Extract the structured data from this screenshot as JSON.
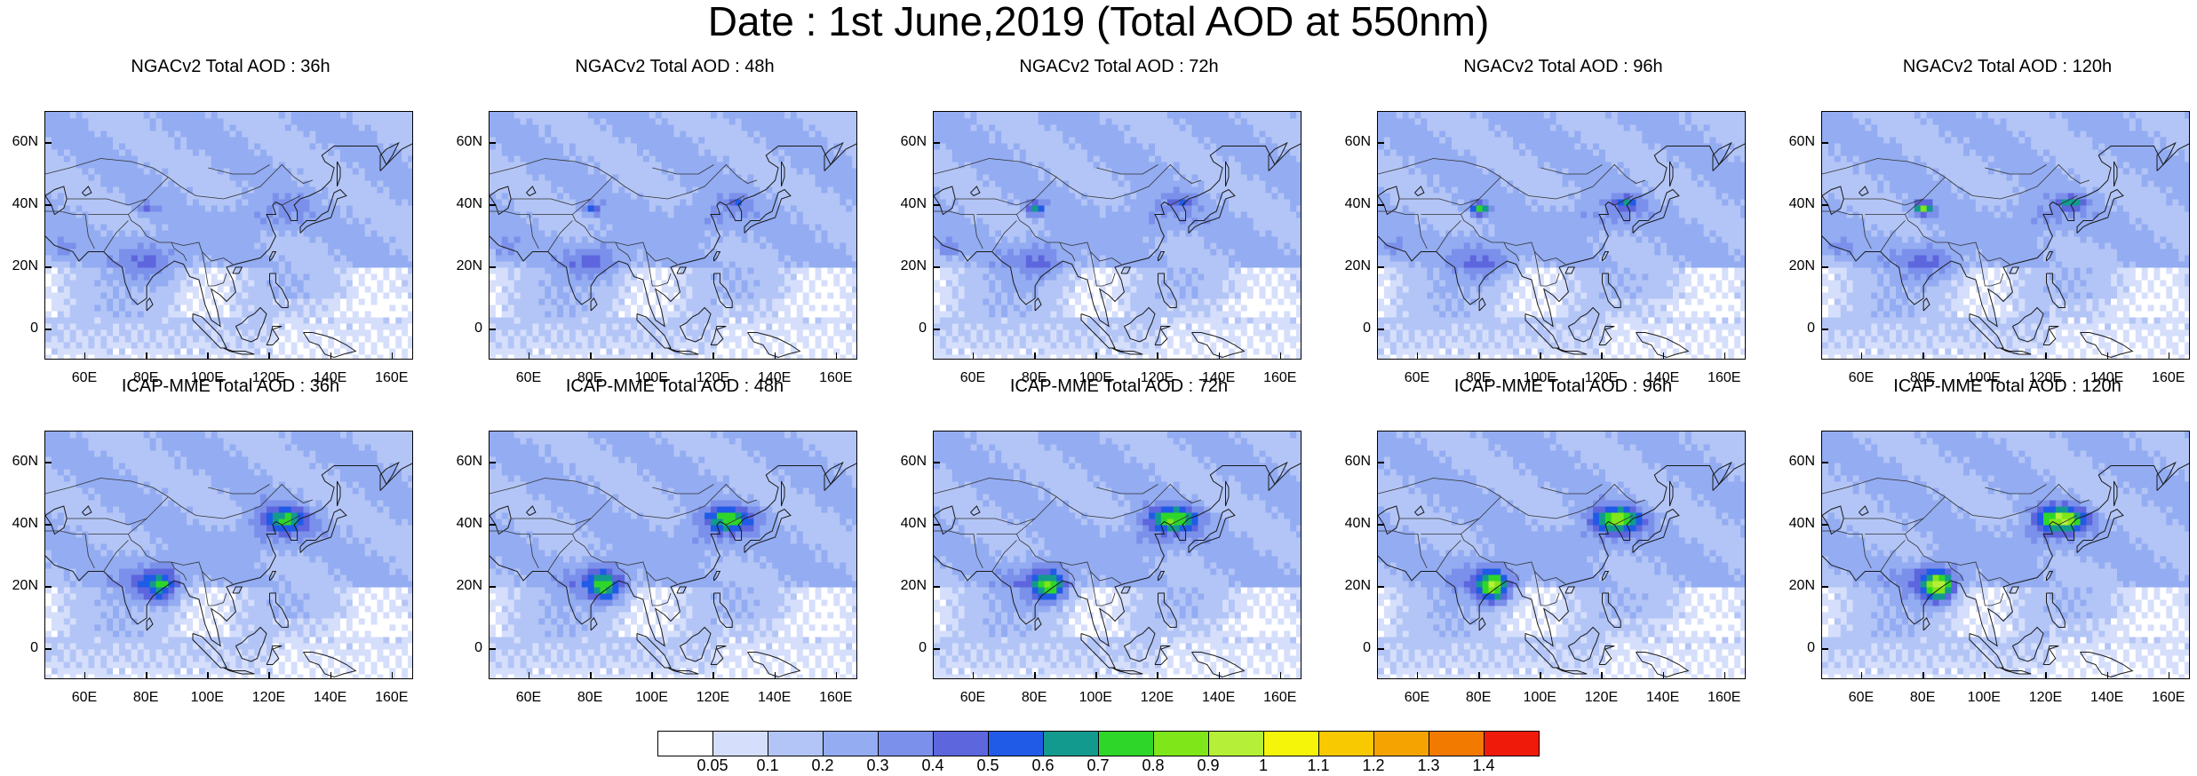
{
  "title": "Date : 1st June,2019 (Total AOD at 550nm)",
  "panel_rows": [
    {
      "model": "NGACv2",
      "panels": [
        {
          "title": "NGACv2 Total AOD : 36h",
          "hotspots": []
        },
        {
          "title": "NGACv2 Total AOD : 48h",
          "hotspots": []
        },
        {
          "title": "NGACv2 Total AOD : 72h",
          "hotspots": []
        },
        {
          "title": "NGACv2 Total AOD : 96h",
          "hotspots": []
        },
        {
          "title": "NGACv2 Total AOD : 120h",
          "hotspots": []
        }
      ]
    },
    {
      "model": "ICAP-MME",
      "panels": [
        {
          "title": "ICAP-MME Total AOD : 36h"
        },
        {
          "title": "ICAP-MME Total AOD : 48h"
        },
        {
          "title": "ICAP-MME Total AOD : 72h"
        },
        {
          "title": "ICAP-MME Total AOD : 96h"
        },
        {
          "title": "ICAP-MME Total AOD : 120h"
        }
      ]
    }
  ],
  "lat_ticks": [
    "60N",
    "40N",
    "20N",
    "0"
  ],
  "lon_ticks": [
    "60E",
    "80E",
    "100E",
    "120E",
    "140E",
    "160E"
  ],
  "colorbar": {
    "labels": [
      "0.05",
      "0.1",
      "0.2",
      "0.3",
      "0.4",
      "0.5",
      "0.6",
      "0.7",
      "0.8",
      "0.9",
      "1",
      "1.1",
      "1.2",
      "1.3",
      "1.4"
    ],
    "colors": [
      "#ffffff",
      "#d5defb",
      "#b3c5f6",
      "#93acf2",
      "#7b90ea",
      "#5d66dd",
      "#1f5be6",
      "#139a8e",
      "#2fd62a",
      "#7fe619",
      "#b5ef37",
      "#f5f50a",
      "#f8c800",
      "#f5a300",
      "#f27a00",
      "#f01a0a"
    ]
  }
}
